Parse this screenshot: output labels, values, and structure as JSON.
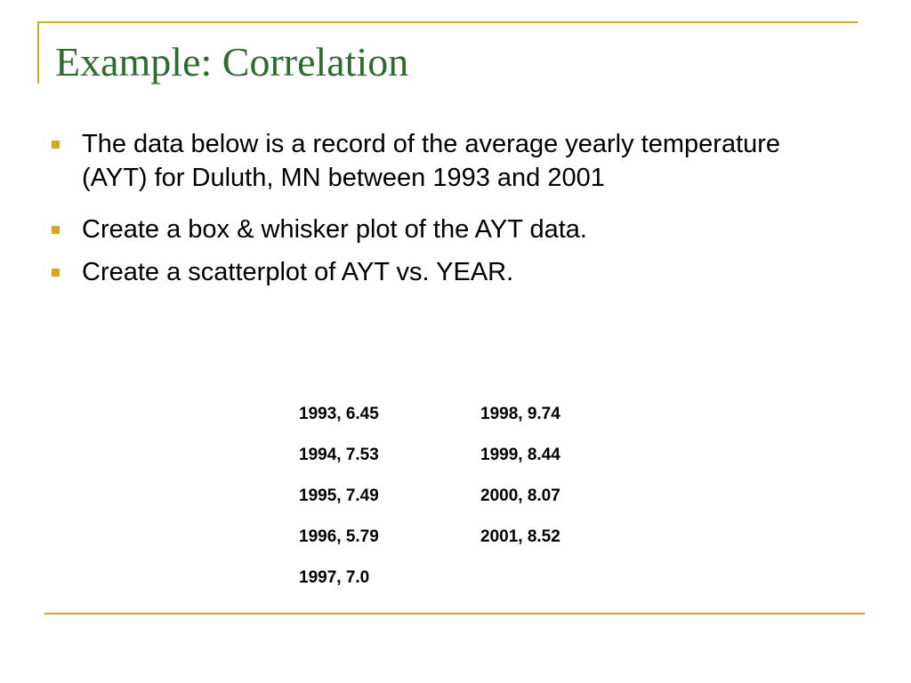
{
  "slide": {
    "title": "Example: Correlation",
    "bullets": [
      "The data below is a record of the average yearly temperature (AYT) for Duluth, MN between  1993 and 2001",
      "Create a box & whisker plot of the AYT data.",
      "Create a scatterplot of AYT vs. YEAR."
    ],
    "data_column_1": [
      "1993, 6.45",
      "1994, 7.53",
      "1995, 7.49",
      "1996, 5.79",
      "1997, 7.0"
    ],
    "data_column_2": [
      "1998, 9.74",
      "1999, 8.44",
      "2000, 8.07",
      "2001, 8.52"
    ]
  },
  "colors": {
    "title": "#2e6b2e",
    "accent_lines": "#d9a520",
    "bullet_marker": "#d9a520",
    "text": "#000000",
    "background": "#ffffff"
  }
}
